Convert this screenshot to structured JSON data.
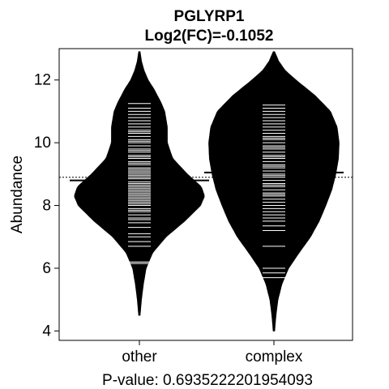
{
  "chart_data": {
    "type": "beanplot",
    "title": "PGLYRP1",
    "subtitle": "Log2(FC)=-0.1052",
    "ylabel": "Abundance",
    "xlabel": "P-value: 0.6935222201954093",
    "ylim": [
      3.7,
      13.0
    ],
    "yticks": [
      4,
      6,
      8,
      10,
      12
    ],
    "categories": [
      "other",
      "complex"
    ],
    "overall_mean": 8.9,
    "groups": [
      {
        "name": "other",
        "mean": 8.8,
        "range": [
          4.5,
          12.9
        ],
        "density": [
          [
            4.5,
            0.01
          ],
          [
            5.0,
            0.03
          ],
          [
            5.5,
            0.06
          ],
          [
            6.0,
            0.1
          ],
          [
            6.5,
            0.2
          ],
          [
            7.0,
            0.4
          ],
          [
            7.5,
            0.68
          ],
          [
            8.0,
            0.92
          ],
          [
            8.3,
            0.98
          ],
          [
            8.6,
            0.93
          ],
          [
            9.0,
            0.72
          ],
          [
            9.5,
            0.5
          ],
          [
            10.0,
            0.42
          ],
          [
            10.5,
            0.42
          ],
          [
            11.0,
            0.38
          ],
          [
            11.3,
            0.32
          ],
          [
            11.7,
            0.22
          ],
          [
            12.0,
            0.13
          ],
          [
            12.3,
            0.07
          ],
          [
            12.6,
            0.03
          ],
          [
            12.9,
            0.01
          ]
        ],
        "points": [
          6.15,
          6.2,
          6.7,
          6.85,
          7.0,
          7.1,
          7.3,
          7.45,
          7.55,
          7.6,
          7.7,
          7.8,
          7.85,
          7.9,
          8.0,
          8.05,
          8.1,
          8.15,
          8.2,
          8.25,
          8.3,
          8.35,
          8.4,
          8.45,
          8.5,
          8.55,
          8.6,
          8.65,
          8.7,
          8.75,
          8.8,
          8.85,
          8.9,
          8.95,
          9.0,
          9.05,
          9.1,
          9.15,
          9.2,
          9.3,
          9.35,
          9.4,
          9.5,
          9.55,
          9.6,
          9.7,
          9.75,
          9.8,
          9.9,
          10.0,
          10.05,
          10.1,
          10.2,
          10.3,
          10.35,
          10.4,
          10.5,
          10.6,
          10.7,
          10.8,
          10.9,
          11.0,
          11.1,
          11.25
        ]
      },
      {
        "name": "complex",
        "mean": 9.05,
        "range": [
          4.0,
          12.9
        ],
        "density": [
          [
            4.0,
            0.01
          ],
          [
            4.5,
            0.03
          ],
          [
            5.0,
            0.06
          ],
          [
            5.5,
            0.12
          ],
          [
            6.0,
            0.22
          ],
          [
            6.5,
            0.38
          ],
          [
            7.0,
            0.55
          ],
          [
            7.5,
            0.68
          ],
          [
            8.0,
            0.78
          ],
          [
            8.5,
            0.87
          ],
          [
            9.0,
            0.93
          ],
          [
            9.5,
            0.97
          ],
          [
            10.0,
            0.98
          ],
          [
            10.5,
            0.95
          ],
          [
            11.0,
            0.85
          ],
          [
            11.5,
            0.62
          ],
          [
            12.0,
            0.33
          ],
          [
            12.3,
            0.17
          ],
          [
            12.6,
            0.07
          ],
          [
            12.9,
            0.01
          ]
        ],
        "points": [
          5.7,
          5.85,
          6.0,
          6.7,
          7.2,
          7.35,
          7.5,
          7.6,
          7.7,
          7.8,
          7.9,
          8.0,
          8.1,
          8.2,
          8.3,
          8.35,
          8.4,
          8.5,
          8.6,
          8.65,
          8.7,
          8.8,
          8.9,
          8.95,
          9.0,
          9.1,
          9.2,
          9.25,
          9.3,
          9.4,
          9.5,
          9.55,
          9.6,
          9.7,
          9.8,
          9.85,
          9.9,
          10.0,
          10.1,
          10.15,
          10.2,
          10.3,
          10.4,
          10.5,
          10.6,
          10.7,
          10.8,
          10.9,
          11.0,
          11.1,
          11.2
        ]
      }
    ]
  }
}
